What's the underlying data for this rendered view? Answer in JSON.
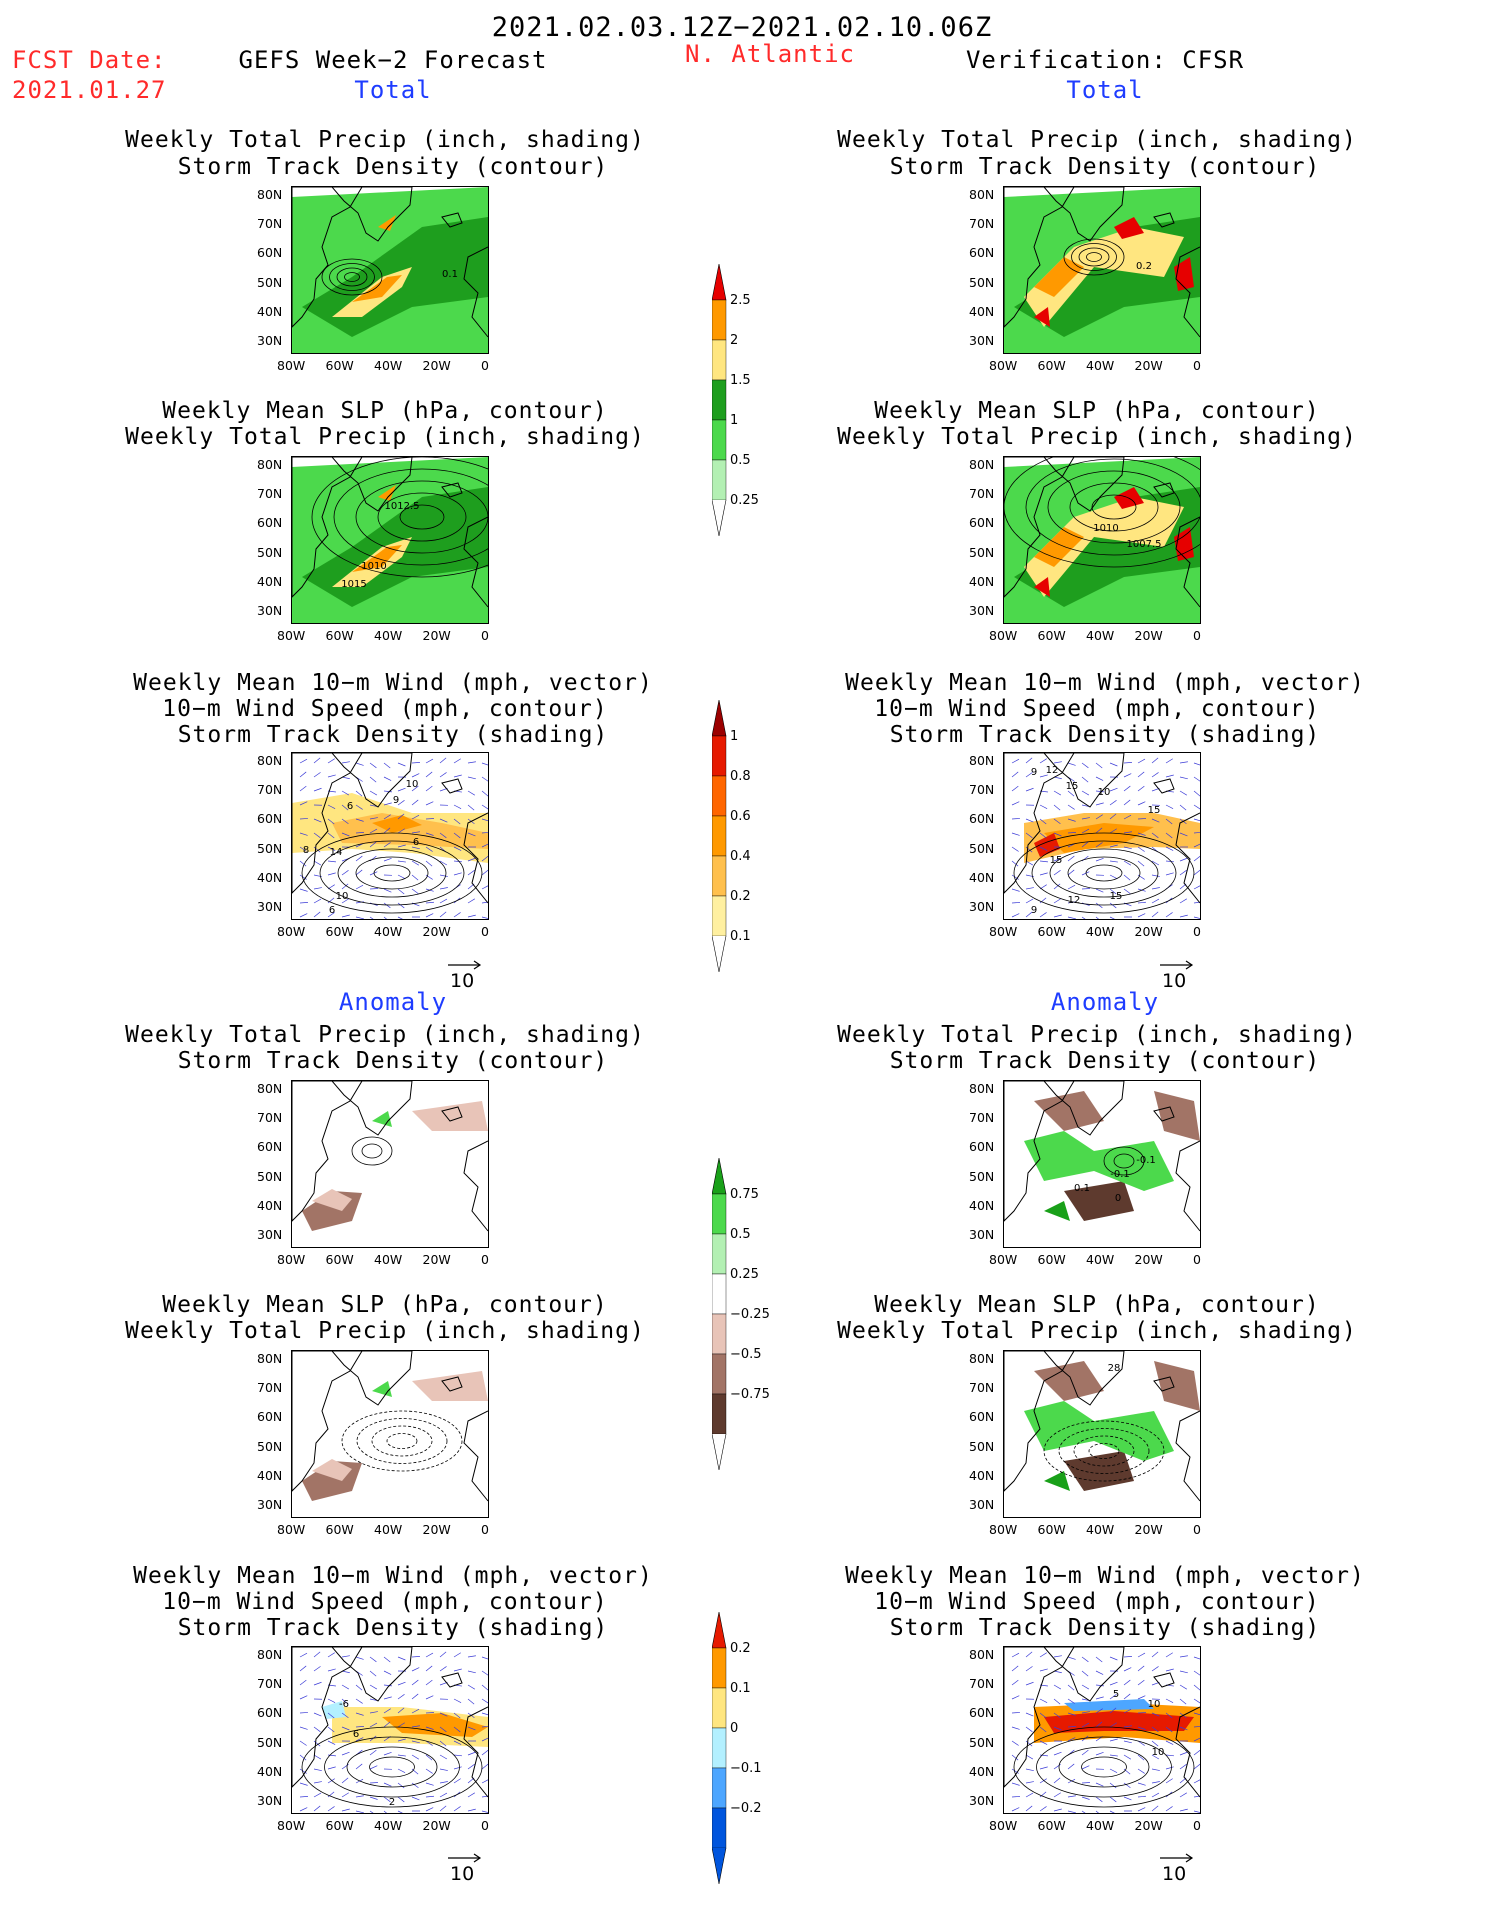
{
  "header": {
    "period": "2021.02.03.12Z−2021.02.10.06Z",
    "fcst_label": "FCST Date:",
    "fcst_date": "2021.01.27",
    "left_title": "GEFS Week−2 Forecast",
    "region": "N. Atlantic",
    "right_title": "Verification: CFSR"
  },
  "sections": {
    "total": "Total",
    "anomaly": "Anomaly"
  },
  "panel_titles": {
    "precip_track": [
      "Weekly Total Precip (inch, shading)",
      "Storm Track Density (contour)"
    ],
    "slp_precip": [
      "Weekly Mean SLP (hPa, contour)",
      "Weekly Total Precip (inch, shading)"
    ],
    "wind_track": [
      "Weekly Mean 10−m Wind (mph, vector)",
      "10−m Wind Speed (mph, contour)",
      "Storm Track Density (shading)"
    ]
  },
  "axes": {
    "lat_labels": [
      "80N",
      "70N",
      "60N",
      "50N",
      "40N",
      "30N"
    ],
    "lon_labels": [
      "80W",
      "60W",
      "40W",
      "20W",
      "0"
    ]
  },
  "vector_ref": "10",
  "contour_labels": {
    "fc_precip_track": [
      "0.1"
    ],
    "an_precip_track": [
      "0.2"
    ],
    "fc_slp": [
      "1012.5",
      "1010",
      "1015"
    ],
    "an_slp": [
      "1010",
      "1007.5"
    ],
    "fc_wind": [
      "10",
      "9",
      "6",
      "8",
      "14",
      "6",
      "10",
      "6"
    ],
    "an_wind": [
      "12",
      "15",
      "9",
      "10",
      "15",
      "15",
      "12",
      "15",
      "9"
    ],
    "fc_anom_precip": [],
    "an_anom_precip": [
      "-0.1",
      "0.1",
      "0",
      "-0.1"
    ],
    "an_anom_slp": [
      "28"
    ],
    "fc_anom_wind": [
      "-6",
      "6",
      "2"
    ],
    "an_anom_wind": [
      "5",
      "10",
      "10"
    ]
  },
  "colorbars": {
    "precip_total": {
      "labels": [
        "2.5",
        "2",
        "1.5",
        "1",
        "0.5",
        "0.25"
      ],
      "colors": [
        "#e60000",
        "#ff9900",
        "#ffe680",
        "#1e9e1e",
        "#4cd94c",
        "#b3f0b3"
      ]
    },
    "track_total": {
      "labels": [
        "1",
        "0.8",
        "0.6",
        "0.4",
        "0.2",
        "0.1"
      ],
      "colors": [
        "#9b0000",
        "#e61a00",
        "#ff6600",
        "#ff9900",
        "#ffc04d",
        "#fff0a0"
      ]
    },
    "precip_anom": {
      "labels": [
        "0.75",
        "0.5",
        "0.25",
        "−0.25",
        "−0.5",
        "−0.75"
      ],
      "colors": [
        "#19a019",
        "#4cd94c",
        "#b3f0b3",
        "#ffffff",
        "#e8c4b8",
        "#a27466",
        "#5e3a2e"
      ]
    },
    "track_anom": {
      "labels": [
        "0.2",
        "0.1",
        "0",
        "−0.1",
        "−0.2"
      ],
      "colors": [
        "#e61a00",
        "#ff9900",
        "#ffe680",
        "#b3f0ff",
        "#4da6ff",
        "#0055dd"
      ]
    }
  }
}
